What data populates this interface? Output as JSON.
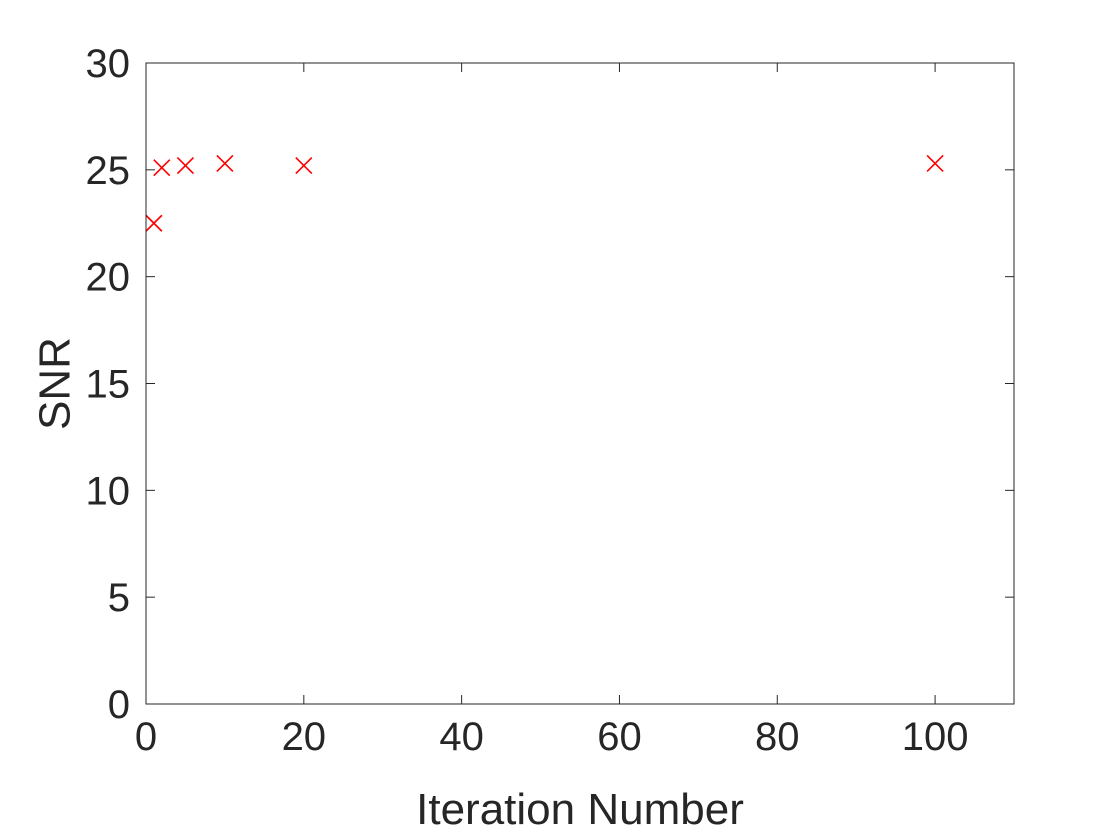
{
  "chart_data": {
    "type": "scatter",
    "title": "",
    "xlabel": "Iteration Number",
    "ylabel": "SNR",
    "xlim": [
      0,
      110
    ],
    "ylim": [
      0,
      30
    ],
    "xticks": [
      0,
      20,
      40,
      60,
      80,
      100
    ],
    "yticks": [
      0,
      5,
      10,
      15,
      20,
      25,
      30
    ],
    "grid": false,
    "box": true,
    "marker": "x",
    "colors": {
      "marker": "#ff0000",
      "axis": "#262626",
      "background": "#ffffff"
    },
    "series": [
      {
        "x": [
          1,
          2,
          5,
          10,
          20,
          100
        ],
        "y": [
          22.5,
          25.1,
          25.2,
          25.3,
          25.2,
          25.3
        ]
      }
    ]
  }
}
